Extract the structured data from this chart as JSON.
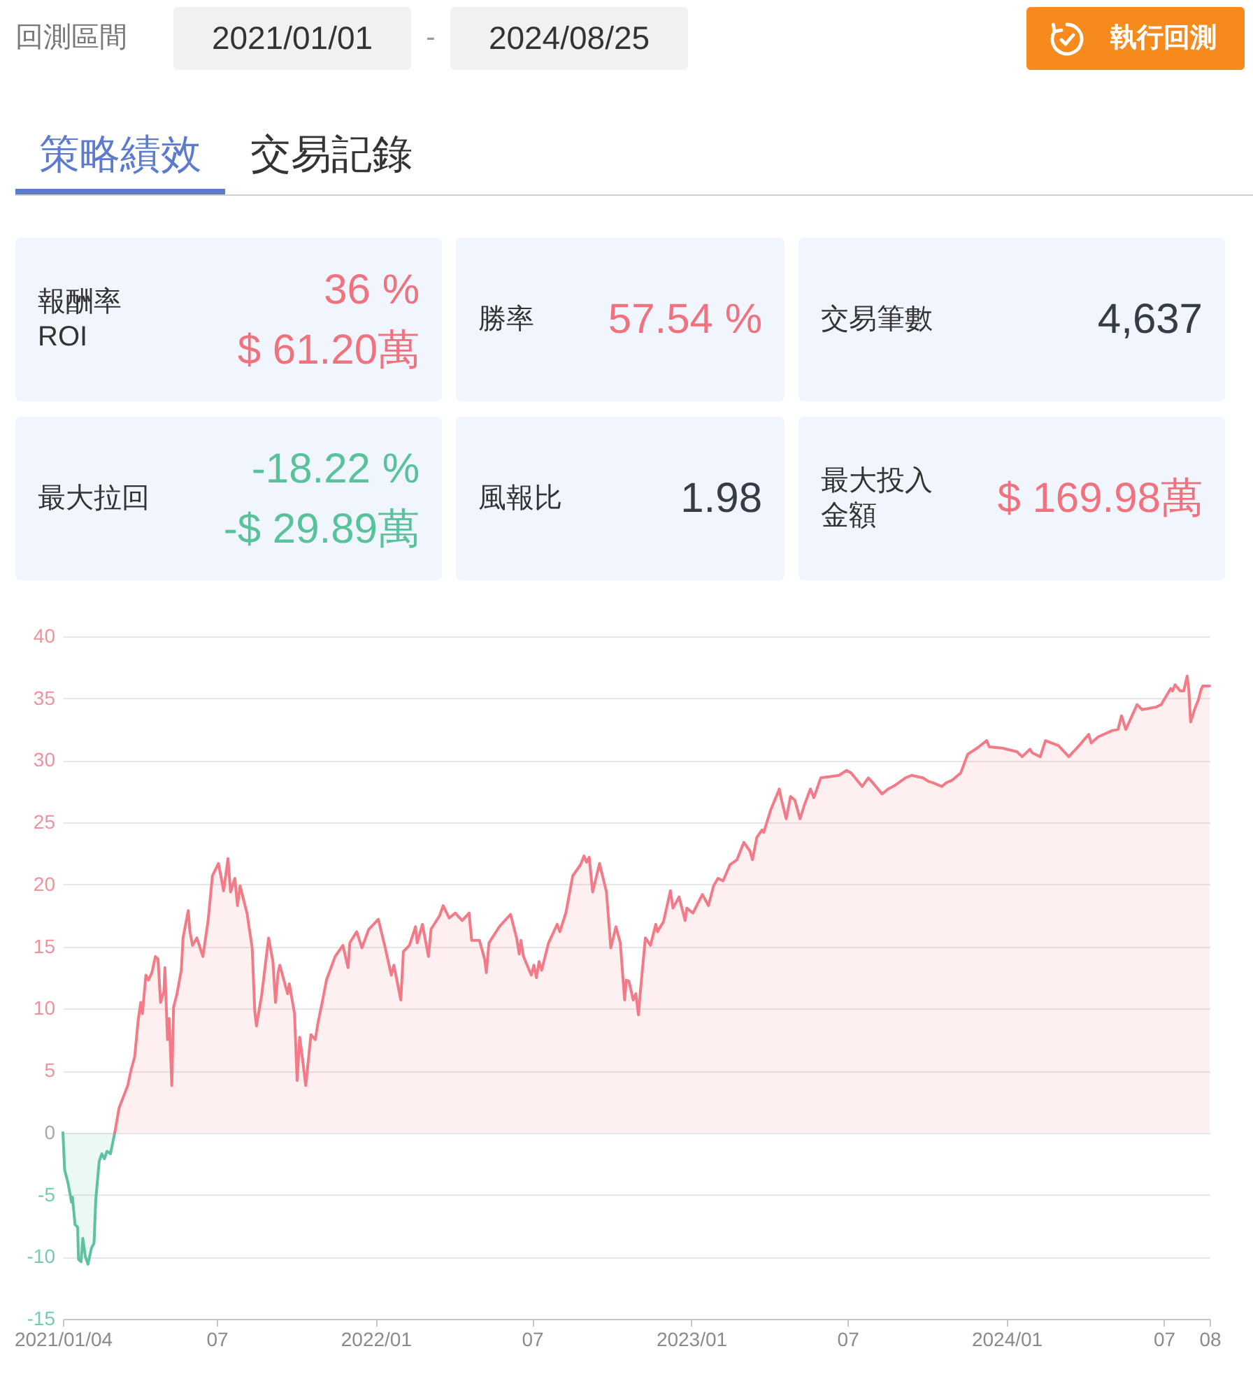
{
  "chart_data": [
    {
      "type": "other",
      "annotations": [
        "回測區間",
        "2021/01/01",
        "-",
        "2024/08/25",
        "執行回測",
        "策略績效",
        "交易記錄",
        "報酬率 ROI",
        "36 %",
        "$ 61.20萬",
        "勝率",
        "57.54 %",
        "交易筆數",
        "4,637",
        "最大拉回",
        "-18.22 %",
        "-$ 29.89萬",
        "風報比",
        "1.98",
        "最大投入金額",
        "$ 169.98萬"
      ]
    },
    {
      "type": "area",
      "xlim": [
        "2021-01-04",
        "2024-08-23"
      ],
      "xticks": [
        {
          "value": "2021-01-04",
          "label": "2021/01/04"
        },
        {
          "value": "2021-07-01",
          "label": "07"
        },
        {
          "value": "2022-01-01",
          "label": "2022/01"
        },
        {
          "value": "2022-07-01",
          "label": "07"
        },
        {
          "value": "2023-01-01",
          "label": "2023/01"
        },
        {
          "value": "2023-07-01",
          "label": "07"
        },
        {
          "value": "2024-01-01",
          "label": "2024/01"
        },
        {
          "value": "2024-07-01",
          "label": "07"
        },
        {
          "value": "2024-08-23",
          "label": "08"
        }
      ],
      "ylim": [
        -15,
        40
      ],
      "yticks": [
        -15,
        -10,
        -5,
        0,
        5,
        10,
        15,
        20,
        25,
        30,
        35,
        40
      ],
      "grid": "y",
      "series": [
        {
          "color": "#5dc29f",
          "x": [
            "2021-01-04",
            "2021-01-06",
            "2021-01-10",
            "2021-01-14",
            "2021-01-15",
            "2021-01-18",
            "2021-01-21",
            "2021-01-22",
            "2021-01-25",
            "2021-01-27",
            "2021-01-30",
            "2021-02-02",
            "2021-02-06",
            "2021-02-09",
            "2021-02-11",
            "2021-02-15",
            "2021-02-18",
            "2021-02-21",
            "2021-02-24",
            "2021-02-28",
            "2021-03-05"
          ],
          "values": [
            0,
            -3.0,
            -4.1,
            -5.6,
            -5.2,
            -7.4,
            -7.6,
            -10.2,
            -10.4,
            -8.5,
            -10.0,
            -10.6,
            -9.3,
            -8.9,
            -5.4,
            -2.3,
            -1.7,
            -2.1,
            -1.5,
            -1.7,
            0
          ]
        },
        {
          "color": "#f37b88",
          "x": [
            "2021-03-05",
            "2021-03-10",
            "2021-03-20",
            "2021-03-24",
            "2021-03-28",
            "2021-04-01",
            "2021-04-04",
            "2021-04-06",
            "2021-04-10",
            "2021-04-13",
            "2021-04-17",
            "2021-04-21",
            "2021-04-24",
            "2021-04-27",
            "2021-05-01",
            "2021-05-02",
            "2021-05-05",
            "2021-05-07",
            "2021-05-10",
            "2021-05-12",
            "2021-05-16",
            "2021-05-21",
            "2021-05-23",
            "2021-05-29",
            "2021-05-31",
            "2021-06-03",
            "2021-06-08",
            "2021-06-15",
            "2021-06-21",
            "2021-06-26",
            "2021-07-03",
            "2021-07-09",
            "2021-07-14",
            "2021-07-17",
            "2021-07-22",
            "2021-07-25",
            "2021-07-28",
            "2021-08-05",
            "2021-08-11",
            "2021-08-14",
            "2021-08-16",
            "2021-08-22",
            "2021-08-30",
            "2021-09-04",
            "2021-09-07",
            "2021-09-10",
            "2021-09-12",
            "2021-09-21",
            "2021-09-23",
            "2021-09-29",
            "2021-10-02",
            "2021-10-05",
            "2021-10-08",
            "2021-10-12",
            "2021-10-18",
            "2021-10-23",
            "2021-10-26",
            "2021-10-31",
            "2021-11-05",
            "2021-11-15",
            "2021-11-24",
            "2021-11-30",
            "2021-12-02",
            "2021-12-10",
            "2021-12-16",
            "2021-12-24",
            "2022-01-04",
            "2022-01-12",
            "2022-01-19",
            "2022-01-22",
            "2022-01-30",
            "2022-02-02",
            "2022-02-09",
            "2022-02-16",
            "2022-02-18",
            "2022-02-24",
            "2022-03-03",
            "2022-03-06",
            "2022-03-16",
            "2022-03-20",
            "2022-03-27",
            "2022-04-03",
            "2022-04-11",
            "2022-04-19",
            "2022-04-22",
            "2022-05-01",
            "2022-05-07",
            "2022-05-09",
            "2022-05-12",
            "2022-05-24",
            "2022-06-06",
            "2022-06-13",
            "2022-06-16",
            "2022-06-18",
            "2022-06-21",
            "2022-06-30",
            "2022-07-03",
            "2022-07-06",
            "2022-07-09",
            "2022-07-12",
            "2022-07-20",
            "2022-07-30",
            "2022-08-02",
            "2022-08-09",
            "2022-08-17",
            "2022-08-26",
            "2022-08-30",
            "2022-09-02",
            "2022-09-05",
            "2022-09-09",
            "2022-09-17",
            "2022-09-25",
            "2022-09-30",
            "2022-10-06",
            "2022-10-11",
            "2022-10-16",
            "2022-10-18",
            "2022-10-21",
            "2022-10-26",
            "2022-10-29",
            "2022-11-01",
            "2022-11-03",
            "2022-11-09",
            "2022-11-15",
            "2022-11-21",
            "2022-11-23",
            "2022-11-30",
            "2022-12-08",
            "2022-12-11",
            "2022-12-18",
            "2022-12-25",
            "2022-12-27",
            "2023-01-03",
            "2023-01-14",
            "2023-01-21",
            "2023-01-27",
            "2023-02-01",
            "2023-02-07",
            "2023-02-15",
            "2023-02-23",
            "2023-03-03",
            "2023-03-10",
            "2023-03-13",
            "2023-03-18",
            "2023-03-24",
            "2023-03-26",
            "2023-04-03",
            "2023-04-13",
            "2023-04-15",
            "2023-04-21",
            "2023-04-26",
            "2023-05-01",
            "2023-05-07",
            "2023-05-12",
            "2023-05-19",
            "2023-05-23",
            "2023-05-31",
            "2023-06-11",
            "2023-06-21",
            "2023-06-30",
            "2023-07-05",
            "2023-07-18",
            "2023-07-25",
            "2023-07-29",
            "2023-08-10",
            "2023-08-17",
            "2023-08-25",
            "2023-09-06",
            "2023-09-13",
            "2023-09-26",
            "2023-10-03",
            "2023-10-08",
            "2023-10-18",
            "2023-10-23",
            "2023-10-30",
            "2023-11-09",
            "2023-11-17",
            "2023-11-28",
            "2023-12-09",
            "2023-12-12",
            "2023-12-27",
            "2024-01-13",
            "2024-01-19",
            "2024-01-28",
            "2024-01-31",
            "2024-02-09",
            "2024-02-15",
            "2024-03-01",
            "2024-03-13",
            "2024-03-25",
            "2024-04-05",
            "2024-04-08",
            "2024-04-16",
            "2024-05-02",
            "2024-05-09",
            "2024-05-13",
            "2024-05-18",
            "2024-05-31",
            "2024-06-06",
            "2024-06-22",
            "2024-06-28",
            "2024-07-09",
            "2024-07-11",
            "2024-07-14",
            "2024-07-20",
            "2024-07-24",
            "2024-07-28",
            "2024-07-30",
            "2024-08-01",
            "2024-08-06",
            "2024-08-10",
            "2024-08-13",
            "2024-08-15",
            "2024-08-23"
          ],
          "values": [
            0,
            2.0,
            3.8,
            5.1,
            6.1,
            9.0,
            10.5,
            9.6,
            12.7,
            12.3,
            12.9,
            14.2,
            14.0,
            10.5,
            11.4,
            13.3,
            7.5,
            9.2,
            3.8,
            10.1,
            11.2,
            13.1,
            15.7,
            17.9,
            16.2,
            15.1,
            15.7,
            14.2,
            17.1,
            20.7,
            21.7,
            19.5,
            22.1,
            19.4,
            20.5,
            18.3,
            19.9,
            17.7,
            14.9,
            9.8,
            8.6,
            11.1,
            15.7,
            13.8,
            10.5,
            12.9,
            13.5,
            11.2,
            12.0,
            9.6,
            4.2,
            7.7,
            6.1,
            3.8,
            7.9,
            7.5,
            8.8,
            10.5,
            12.3,
            14.2,
            15.1,
            13.3,
            15.3,
            16.2,
            14.9,
            16.4,
            17.2,
            14.9,
            12.7,
            13.5,
            10.7,
            14.6,
            15.1,
            16.6,
            15.3,
            16.8,
            14.2,
            16.4,
            17.5,
            18.3,
            17.3,
            17.7,
            17.1,
            17.7,
            15.5,
            15.5,
            14.0,
            12.9,
            15.3,
            16.6,
            17.6,
            15.7,
            14.4,
            15.5,
            14.2,
            12.7,
            13.5,
            12.5,
            13.8,
            13.1,
            15.3,
            16.8,
            16.2,
            17.7,
            20.7,
            21.6,
            22.3,
            21.8,
            22.2,
            19.4,
            21.7,
            19.4,
            14.9,
            16.6,
            15.3,
            10.7,
            12.3,
            12.2,
            10.7,
            11.2,
            9.5,
            11.2,
            15.7,
            15.1,
            16.8,
            16.2,
            17.0,
            19.5,
            18.1,
            19.0,
            17.1,
            18.1,
            17.7,
            19.2,
            18.3,
            19.9,
            20.5,
            20.3,
            21.6,
            22.0,
            23.4,
            22.7,
            22.0,
            23.8,
            24.4,
            24.2,
            26.0,
            27.7,
            27.0,
            25.3,
            27.1,
            26.8,
            25.3,
            26.4,
            27.7,
            27.0,
            28.6,
            28.7,
            28.8,
            29.2,
            29.0,
            27.9,
            28.6,
            28.3,
            27.3,
            27.7,
            28.0,
            28.6,
            28.8,
            28.6,
            28.3,
            28.2,
            27.9,
            28.2,
            28.4,
            29.0,
            30.5,
            31.0,
            31.6,
            31.1,
            31.0,
            30.7,
            30.3,
            30.9,
            30.6,
            30.3,
            31.6,
            31.2,
            30.3,
            31.2,
            32.1,
            31.4,
            31.9,
            32.4,
            32.5,
            33.6,
            32.5,
            34.5,
            34.1,
            34.3,
            34.5,
            35.8,
            35.6,
            36.1,
            35.6,
            35.6,
            36.8,
            35.6,
            33.1,
            34.2,
            34.9,
            35.7,
            36.0,
            36.0
          ]
        }
      ]
    }
  ]
}
